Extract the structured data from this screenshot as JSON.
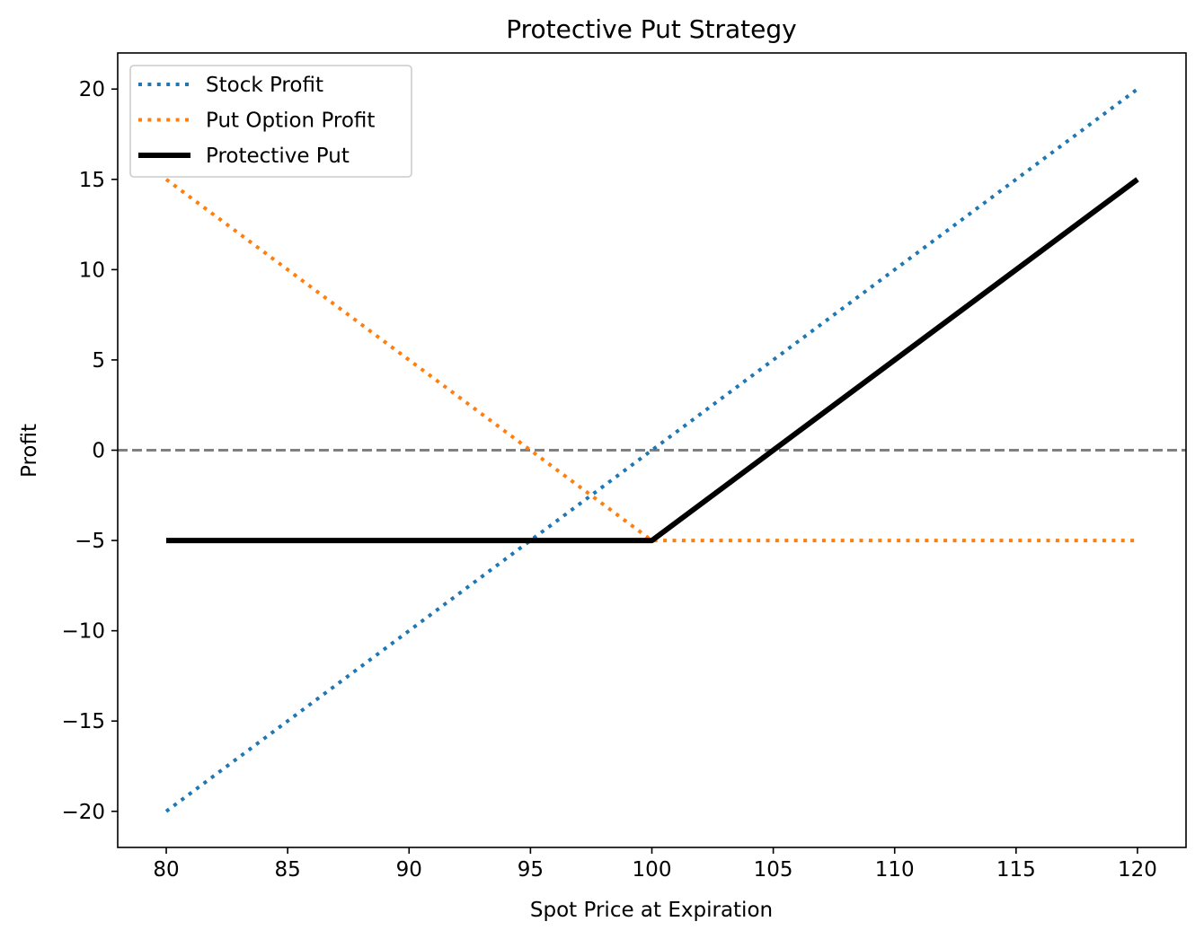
{
  "chart_data": {
    "type": "line",
    "title": "Protective Put Strategy",
    "xlabel": "Spot Price at Expiration",
    "ylabel": "Profit",
    "xlim": [
      78,
      122
    ],
    "ylim": [
      -22,
      22
    ],
    "xticks": [
      80,
      85,
      90,
      95,
      100,
      105,
      110,
      115,
      120
    ],
    "xtick_labels": [
      "80",
      "85",
      "90",
      "95",
      "100",
      "105",
      "110",
      "115",
      "120"
    ],
    "yticks": [
      20,
      15,
      10,
      5,
      0,
      -5,
      -10,
      -15,
      -20
    ],
    "ytick_labels": [
      "20",
      "15",
      "10",
      "5",
      "0",
      "−5",
      "−10",
      "−15",
      "−20"
    ],
    "grid": false,
    "legend_position": "upper-left",
    "reference_line": {
      "y": 0,
      "style": "dashed",
      "color": "#808080"
    },
    "series": [
      {
        "name": "Stock Profit",
        "color": "#1f77b4",
        "style": "dotted",
        "x": [
          80,
          120
        ],
        "y": [
          -20,
          20
        ]
      },
      {
        "name": "Put Option Profit",
        "color": "#ff7f0e",
        "style": "dotted",
        "x": [
          80,
          100,
          120
        ],
        "y": [
          15,
          -5,
          -5
        ]
      },
      {
        "name": "Protective Put",
        "color": "#000000",
        "style": "solid",
        "x": [
          80,
          100,
          120
        ],
        "y": [
          -5,
          -5,
          15
        ]
      }
    ]
  }
}
